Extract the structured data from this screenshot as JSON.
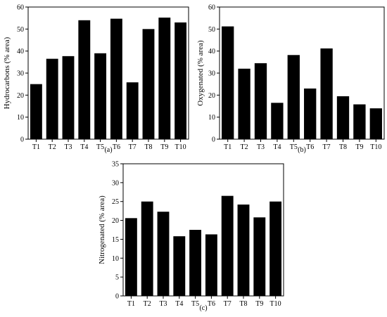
{
  "chart_data": [
    {
      "type": "bar",
      "panel_label": "(a)",
      "ylabel": "Hydrocarbons (% area)",
      "categories": [
        "T1",
        "T2",
        "T3",
        "T4",
        "T5",
        "T6",
        "T7",
        "T8",
        "T9",
        "T10"
      ],
      "values": [
        25,
        36.5,
        37.7,
        54,
        39,
        54.7,
        25.8,
        50,
        55.2,
        53
      ],
      "ylim": [
        0,
        60
      ],
      "yticks": [
        0,
        10,
        20,
        30,
        40,
        50,
        60
      ],
      "bar_color": "#000000"
    },
    {
      "type": "bar",
      "panel_label": "(b)",
      "ylabel": "Oxygenated (% area)",
      "categories": [
        "T1",
        "T2",
        "T3",
        "T4",
        "T5",
        "T6",
        "T7",
        "T8",
        "T9",
        "T10"
      ],
      "values": [
        51.2,
        32,
        34.5,
        16.5,
        38.2,
        23,
        41.2,
        19.5,
        15.8,
        14
      ],
      "ylim": [
        0,
        60
      ],
      "yticks": [
        0,
        10,
        20,
        30,
        40,
        50,
        60
      ],
      "bar_color": "#000000"
    },
    {
      "type": "bar",
      "panel_label": "(c)",
      "ylabel": "Nitrogenated (% area)",
      "categories": [
        "T1",
        "T2",
        "T3",
        "T4",
        "T5",
        "T6",
        "T7",
        "T8",
        "T9",
        "T10"
      ],
      "values": [
        20.6,
        25,
        22.3,
        15.8,
        17.5,
        16.3,
        26.5,
        24.2,
        20.8,
        25
      ],
      "ylim": [
        0,
        35
      ],
      "yticks": [
        0,
        5,
        10,
        15,
        20,
        25,
        30,
        35
      ],
      "bar_color": "#000000"
    }
  ]
}
